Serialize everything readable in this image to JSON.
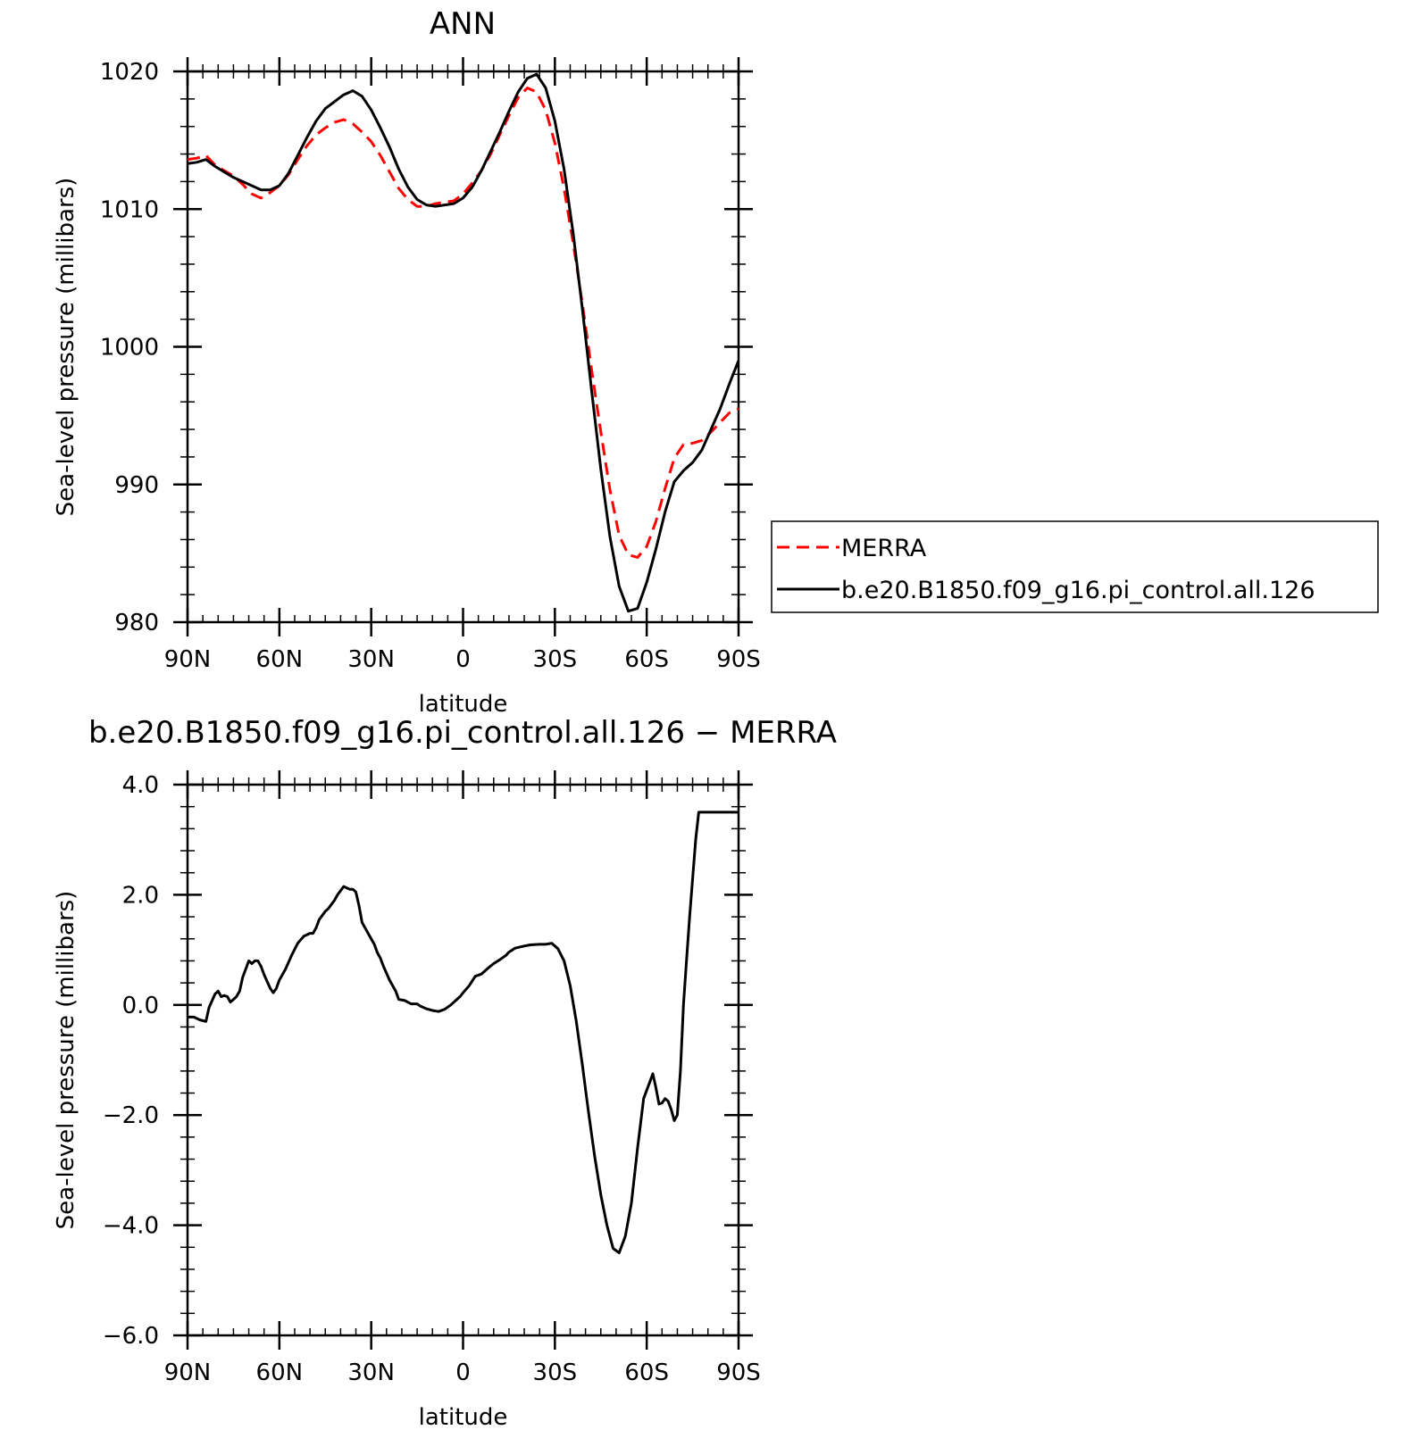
{
  "chart_data": [
    {
      "type": "line",
      "title": "ANN",
      "xlabel": "latitude",
      "ylabel": "Sea-level pressure (millibars)",
      "xlim": [
        90,
        -90
      ],
      "ylim": [
        980,
        1020
      ],
      "xticks": [
        90,
        60,
        30,
        0,
        -30,
        -60,
        -90
      ],
      "xtick_labels": [
        "90N",
        "60N",
        "30N",
        "0",
        "30S",
        "60S",
        "90S"
      ],
      "yticks": [
        980,
        990,
        1000,
        1010,
        1020
      ],
      "ytick_labels": [
        "980",
        "990",
        "1000",
        "1010",
        "1020"
      ],
      "legend": "right",
      "series": [
        {
          "name": "MERRA",
          "color": "#ff0000",
          "dash": "dashed",
          "x": [
            90,
            87,
            84,
            81,
            78,
            75,
            72,
            69,
            66,
            63,
            60,
            57,
            54,
            51,
            48,
            45,
            42,
            39,
            36,
            33,
            30,
            27,
            24,
            21,
            18,
            15,
            12,
            9,
            6,
            3,
            0,
            -3,
            -6,
            -9,
            -12,
            -15,
            -18,
            -21,
            -24,
            -27,
            -30,
            -33,
            -36,
            -39,
            -42,
            -45,
            -48,
            -51,
            -54,
            -57,
            -60,
            -63,
            -66,
            -69,
            -72,
            -75,
            -78,
            -81,
            -84,
            -87,
            -90
          ],
          "y": [
            1013.6,
            1013.7,
            1013.9,
            1013.2,
            1012.8,
            1012.4,
            1011.8,
            1011.1,
            1010.8,
            1011.2,
            1011.7,
            1012.5,
            1013.6,
            1014.6,
            1015.4,
            1015.9,
            1016.3,
            1016.5,
            1016.2,
            1015.6,
            1014.9,
            1013.9,
            1012.7,
            1011.5,
            1010.7,
            1010.2,
            1010.2,
            1010.4,
            1010.5,
            1010.6,
            1011.1,
            1011.9,
            1012.8,
            1014.0,
            1015.4,
            1016.8,
            1018.1,
            1018.8,
            1018.5,
            1017.2,
            1014.8,
            1011.5,
            1007.5,
            1003.1,
            998.3,
            993.8,
            989.6,
            986.3,
            984.9,
            984.7,
            985.5,
            987.3,
            989.7,
            991.9,
            992.9,
            993.0,
            993.2,
            993.8,
            994.5,
            995.2,
            995.5
          ]
        },
        {
          "name": "b.e20.B1850.f09_g16.pi_control.all.126",
          "color": "#000000",
          "dash": "solid",
          "x": [
            90,
            87,
            84,
            81,
            78,
            75,
            72,
            69,
            66,
            63,
            60,
            57,
            54,
            51,
            48,
            45,
            42,
            39,
            36,
            33,
            30,
            27,
            24,
            21,
            18,
            15,
            12,
            9,
            6,
            3,
            0,
            -3,
            -6,
            -9,
            -12,
            -15,
            -18,
            -21,
            -24,
            -27,
            -30,
            -33,
            -36,
            -39,
            -42,
            -45,
            -48,
            -51,
            -54,
            -57,
            -60,
            -63,
            -66,
            -69,
            -72,
            -75,
            -78,
            -81,
            -84,
            -87,
            -90
          ],
          "y": [
            1013.3,
            1013.4,
            1013.6,
            1013.1,
            1012.7,
            1012.3,
            1012.0,
            1011.7,
            1011.4,
            1011.4,
            1011.7,
            1012.6,
            1013.9,
            1015.2,
            1016.4,
            1017.3,
            1017.8,
            1018.3,
            1018.6,
            1018.2,
            1017.2,
            1015.9,
            1014.5,
            1012.9,
            1011.6,
            1010.7,
            1010.3,
            1010.2,
            1010.3,
            1010.4,
            1010.8,
            1011.6,
            1012.8,
            1014.2,
            1015.6,
            1017.1,
            1018.5,
            1019.5,
            1019.8,
            1018.8,
            1016.4,
            1012.9,
            1008.2,
            1002.7,
            996.8,
            991.1,
            986.2,
            982.6,
            980.8,
            981.0,
            982.9,
            985.3,
            988.0,
            990.2,
            991.0,
            991.6,
            992.5,
            994.0,
            995.5,
            997.3,
            999.0
          ]
        }
      ]
    },
    {
      "type": "line",
      "title": "b.e20.B1850.f09_g16.pi_control.all.126 − MERRA",
      "xlabel": "latitude",
      "ylabel": "Sea-level pressure (millibars)",
      "xlim": [
        90,
        -90
      ],
      "ylim": [
        -6.0,
        4.0
      ],
      "xticks": [
        90,
        60,
        30,
        0,
        -30,
        -60,
        -90
      ],
      "xtick_labels": [
        "90N",
        "60N",
        "30N",
        "0",
        "30S",
        "60S",
        "90S"
      ],
      "yticks": [
        -6.0,
        -4.0,
        -2.0,
        0.0,
        2.0,
        4.0
      ],
      "ytick_labels": [
        "−6.0",
        "−4.0",
        "−2.0",
        "0.0",
        "2.0",
        "4.0"
      ],
      "series": [
        {
          "color": "#000000",
          "dash": "solid",
          "x": [
            90,
            88,
            86,
            84,
            83,
            81,
            80,
            79,
            78,
            77,
            76,
            75,
            74,
            73,
            72,
            70,
            69,
            68,
            67,
            66,
            65,
            63,
            62,
            61,
            60,
            58,
            56,
            54,
            52,
            50,
            49,
            48,
            47,
            45,
            44,
            42,
            41,
            39,
            37,
            36,
            35,
            34,
            33,
            31,
            29,
            28,
            27,
            26,
            24,
            22,
            21,
            19,
            17,
            15,
            14,
            12,
            10,
            8,
            6,
            4,
            2,
            1,
            0,
            -2,
            -4,
            -6,
            -8,
            -10,
            -12,
            -14,
            -15,
            -17,
            -20,
            -22,
            -25,
            -27,
            -29,
            -31,
            -33,
            -35,
            -37,
            -39,
            -41,
            -43,
            -45,
            -47,
            -49,
            -51,
            -53,
            -55,
            -57,
            -59,
            -61,
            -62,
            -63,
            -64,
            -65,
            -66,
            -67,
            -68,
            -69,
            -70,
            -71,
            -72,
            -73,
            -74,
            -75,
            -76,
            -77,
            -78,
            -79,
            -80,
            -81,
            -82,
            -83,
            -84,
            -85,
            -86,
            -87,
            -88,
            -89,
            -90
          ],
          "y": [
            -0.22,
            -0.22,
            -0.27,
            -0.3,
            -0.05,
            0.2,
            0.25,
            0.15,
            0.17,
            0.15,
            0.05,
            0.1,
            0.15,
            0.25,
            0.5,
            0.8,
            0.75,
            0.8,
            0.8,
            0.7,
            0.55,
            0.3,
            0.22,
            0.3,
            0.45,
            0.65,
            0.9,
            1.12,
            1.25,
            1.3,
            1.3,
            1.4,
            1.55,
            1.7,
            1.75,
            1.9,
            2.0,
            2.15,
            2.1,
            2.1,
            2.05,
            1.8,
            1.5,
            1.3,
            1.1,
            0.95,
            0.85,
            0.7,
            0.45,
            0.25,
            0.1,
            0.08,
            0.02,
            0.02,
            -0.02,
            -0.07,
            -0.1,
            -0.12,
            -0.08,
            0.0,
            0.1,
            0.15,
            0.22,
            0.35,
            0.52,
            0.56,
            0.66,
            0.75,
            0.82,
            0.9,
            0.96,
            1.03,
            1.07,
            1.09,
            1.1,
            1.1,
            1.12,
            1.02,
            0.8,
            0.35,
            -0.3,
            -1.1,
            -1.95,
            -2.75,
            -3.45,
            -4.0,
            -4.42,
            -4.5,
            -4.2,
            -3.6,
            -2.6,
            -1.7,
            -1.4,
            -1.25,
            -1.5,
            -1.8,
            -1.78,
            -1.7,
            -1.75,
            -1.9,
            -2.1,
            -2.0,
            -1.2,
            0.0,
            0.8,
            1.6,
            2.3,
            3.0,
            3.5,
            3.5,
            3.5,
            3.5,
            3.5,
            3.5,
            3.5,
            3.5,
            3.5,
            3.5,
            3.5,
            3.5,
            3.5,
            3.5
          ]
        }
      ]
    }
  ]
}
